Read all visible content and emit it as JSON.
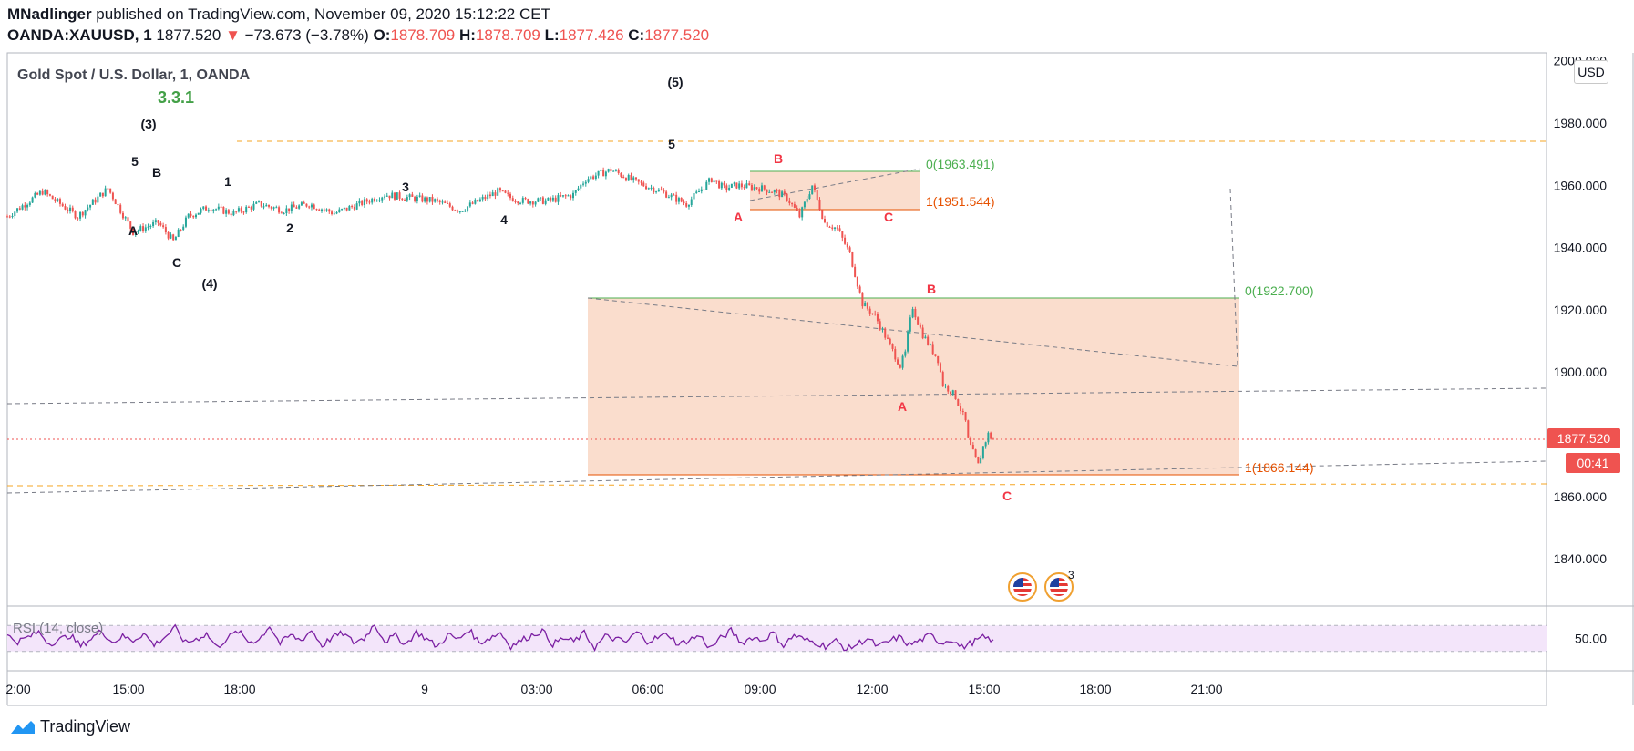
{
  "header": {
    "author": "MNadlinger",
    "published_text": "published on TradingView.com, November 09, 2020 15:12:22 CET",
    "symbol": "OANDA:XAUUSD, 1",
    "last": "1877.520",
    "change_arrow": "▼",
    "change": "−73.673 (−3.78%)",
    "o_label": "O:",
    "o_value": "1878.709",
    "h_label": "H:",
    "h_value": "1878.709",
    "l_label": "L:",
    "l_value": "1877.426",
    "c_label": "C:",
    "c_value": "1877.520"
  },
  "chart_data": {
    "type": "line",
    "title": "Gold Spot / U.S. Dollar, 1, OANDA",
    "watermark": "3.3.1",
    "currency": "USD",
    "y_ticks": [
      "2000.000",
      "1980.000",
      "1960.000",
      "1940.000",
      "1920.000",
      "1900.000",
      "1860.000",
      "1840.000"
    ],
    "ylim": [
      1822,
      2000
    ],
    "x_ticks": [
      "2:00",
      "15:00",
      "18:00",
      "9",
      "03:00",
      "06:00",
      "09:00",
      "12:00",
      "15:00",
      "18:00",
      "21:00"
    ],
    "last_price_label": "1877.520",
    "countdown_label": "00:41",
    "series": [
      {
        "key": "price",
        "x": [
          0,
          14,
          28,
          40,
          50,
          60,
          66,
          72,
          80,
          90,
          100,
          110,
          120,
          130,
          150,
          170,
          180,
          195,
          200,
          205,
          215,
          225,
          230,
          240,
          250,
          260,
          270,
          275,
          280,
          285,
          290,
          300,
          305,
          310,
          315,
          320,
          325,
          330,
          335,
          340,
          345,
          350,
          355,
          357,
          358,
          360,
          362,
          364,
          367,
          370,
          372,
          375,
          377,
          379,
          381,
          382,
          384,
          386,
          388,
          390,
          391,
          393
        ],
        "y": [
          1950,
          1958,
          1950,
          1959,
          1945,
          1948,
          1942,
          1950,
          1953,
          1951,
          1954,
          1952,
          1954,
          1951,
          1957,
          1955,
          1952,
          1958,
          1956,
          1955,
          1955,
          1957,
          1962,
          1965,
          1961,
          1958,
          1954,
          1958,
          1962,
          1959,
          1960,
          1959,
          1958,
          1956,
          1950,
          1960,
          1948,
          1946,
          1938,
          1922,
          1918,
          1910,
          1902,
          1906,
          1912,
          1921,
          1916,
          1912,
          1908,
          1904,
          1896,
          1894,
          1892,
          1888,
          1884,
          1878,
          1874,
          1870,
          1876,
          1880,
          1879,
          1878
        ]
      }
    ],
    "rsi": {
      "label": "RSI (14, close)",
      "tick": "50.00",
      "ylim": [
        0,
        100
      ],
      "band": [
        30,
        70
      ],
      "values": [
        54,
        45,
        52,
        60,
        42,
        48,
        55,
        38,
        50,
        62,
        44,
        53,
        47,
        58,
        40,
        52,
        66,
        43,
        49,
        57,
        36,
        51,
        61,
        45,
        48,
        70,
        42,
        55,
        47,
        63,
        39,
        52,
        58,
        44,
        50,
        72,
        46,
        54,
        41,
        60,
        49,
        37,
        56,
        48,
        64,
        43,
        51,
        59,
        38,
        47,
        55,
        62,
        41,
        50,
        45,
        58,
        36,
        53,
        49,
        44,
        60,
        46,
        51,
        57,
        40,
        48,
        54,
        35,
        50,
        62,
        43,
        52,
        47,
        59,
        39,
        55,
        48,
        44,
        38,
        46,
        33,
        41,
        50,
        37,
        45,
        52,
        40,
        47,
        55,
        43,
        49,
        36,
        44,
        51,
        48
      ]
    },
    "annotations": {
      "wave_labels": [
        {
          "text": "(3)",
          "color": "#131722"
        },
        {
          "text": "5",
          "color": "#131722"
        },
        {
          "text": "B",
          "color": "#131722"
        },
        {
          "text": "1",
          "color": "#131722"
        },
        {
          "text": "A",
          "color": "#131722"
        },
        {
          "text": "C",
          "color": "#131722"
        },
        {
          "text": "(4)",
          "color": "#131722"
        },
        {
          "text": "2",
          "color": "#131722"
        },
        {
          "text": "3",
          "color": "#131722"
        },
        {
          "text": "4",
          "color": "#131722"
        },
        {
          "text": "5",
          "color": "#131722"
        },
        {
          "text": "(5)",
          "color": "#131722"
        },
        {
          "text": "B",
          "color": "#f23645"
        },
        {
          "text": "A",
          "color": "#f23645"
        },
        {
          "text": "C",
          "color": "#f23645"
        },
        {
          "text": "B",
          "color": "#f23645"
        },
        {
          "text": "A",
          "color": "#f23645"
        },
        {
          "text": "C",
          "color": "#f23645"
        }
      ],
      "fib_labels": [
        {
          "text": "0(1963.491)",
          "color": "#4caf50"
        },
        {
          "text": "1(1951.544)",
          "color": "#e65100"
        },
        {
          "text": "0(1922.700)",
          "color": "#4caf50"
        },
        {
          "text": "1(1866.144)",
          "color": "#e65100"
        }
      ]
    },
    "grid": false
  },
  "footer": {
    "brand": "TradingView",
    "event_count": "3"
  },
  "colors": {
    "candle_up": "#26a69a",
    "candle_down": "#ef5350",
    "fib_fill": "#f9d9c8",
    "fib_top": "#4caf50",
    "fib_bottom": "#e65100",
    "hline": "#f5a623",
    "rsi_line": "#7b1fa2",
    "rsi_band": "#f3e5fa",
    "price_tag": "#ef5350"
  }
}
